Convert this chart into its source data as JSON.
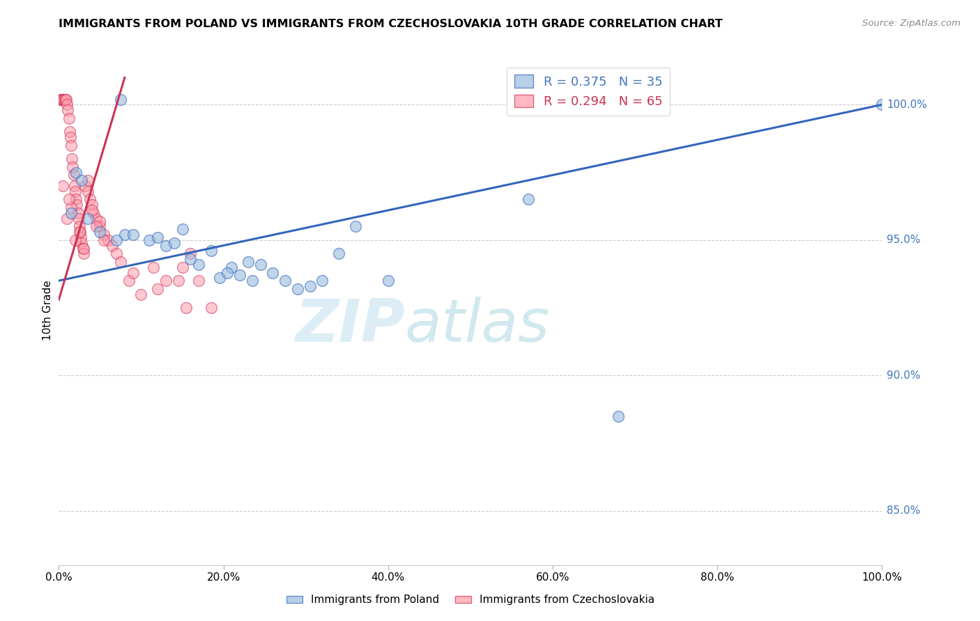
{
  "title": "IMMIGRANTS FROM POLAND VS IMMIGRANTS FROM CZECHOSLOVAKIA 10TH GRADE CORRELATION CHART",
  "source": "Source: ZipAtlas.com",
  "ylabel": "10th Grade",
  "legend_label1": "R = 0.375   N = 35",
  "legend_label2": "R = 0.294   N = 65",
  "color_blue": "#99BBDD",
  "color_pink": "#FF99AA",
  "color_blue_line": "#3366BB",
  "color_pink_line": "#CC3355",
  "color_blue_text": "#4477BB",
  "xmin": 0.0,
  "xmax": 100.0,
  "ymin": 83.0,
  "ymax": 101.8,
  "yticks": [
    85.0,
    90.0,
    95.0,
    100.0
  ],
  "xtick_vals": [
    0.0,
    20.0,
    40.0,
    60.0,
    80.0,
    100.0
  ],
  "blue_trend_x": [
    0.0,
    100.0
  ],
  "blue_trend_y": [
    93.5,
    100.0
  ],
  "pink_trend_x": [
    0.0,
    8.0
  ],
  "pink_trend_y": [
    92.8,
    101.0
  ],
  "blue_scatter_x": [
    2.1,
    2.8,
    7.5,
    1.5,
    3.5,
    5.0,
    8.0,
    11.0,
    13.0,
    15.0,
    17.0,
    18.5,
    19.5,
    21.0,
    22.0,
    23.5,
    24.5,
    26.0,
    27.5,
    29.0,
    30.5,
    32.0,
    34.0,
    36.0,
    7.0,
    9.0,
    12.0,
    14.0,
    16.0,
    20.5,
    23.0,
    40.0,
    57.0,
    100.0,
    68.0
  ],
  "blue_scatter_y": [
    97.5,
    97.2,
    100.2,
    96.0,
    95.8,
    95.3,
    95.2,
    95.0,
    94.8,
    95.4,
    94.1,
    94.6,
    93.6,
    94.0,
    93.7,
    93.5,
    94.1,
    93.8,
    93.5,
    93.2,
    93.3,
    93.5,
    94.5,
    95.5,
    95.0,
    95.2,
    95.1,
    94.9,
    94.3,
    93.8,
    94.2,
    93.5,
    96.5,
    100.0,
    88.5
  ],
  "pink_scatter_x": [
    0.2,
    0.3,
    0.4,
    0.5,
    0.6,
    0.7,
    0.8,
    0.9,
    1.0,
    1.1,
    1.2,
    1.3,
    1.4,
    1.5,
    1.6,
    1.7,
    1.8,
    1.9,
    2.0,
    2.1,
    2.2,
    2.3,
    2.4,
    2.5,
    2.6,
    2.7,
    2.8,
    2.9,
    3.0,
    3.2,
    3.5,
    3.8,
    4.0,
    4.2,
    4.5,
    5.0,
    5.5,
    6.0,
    6.5,
    7.0,
    1.0,
    1.5,
    2.0,
    3.0,
    4.0,
    5.0,
    8.5,
    10.0,
    11.5,
    13.0,
    14.5,
    15.5,
    16.0,
    17.0,
    18.5,
    2.5,
    3.5,
    0.5,
    1.2,
    4.5,
    5.5,
    7.5,
    9.0,
    12.0,
    15.0
  ],
  "pink_scatter_y": [
    100.2,
    100.2,
    100.2,
    100.2,
    100.2,
    100.2,
    100.2,
    100.2,
    100.0,
    99.8,
    99.5,
    99.0,
    98.8,
    98.5,
    98.0,
    97.7,
    97.4,
    97.0,
    96.8,
    96.5,
    96.3,
    96.0,
    95.8,
    95.5,
    95.3,
    95.1,
    94.9,
    94.7,
    94.5,
    97.0,
    96.8,
    96.5,
    96.3,
    96.0,
    95.8,
    95.5,
    95.2,
    95.0,
    94.8,
    94.5,
    95.8,
    96.2,
    95.0,
    94.7,
    96.1,
    95.7,
    93.5,
    93.0,
    94.0,
    93.5,
    93.5,
    92.5,
    94.5,
    93.5,
    92.5,
    95.3,
    97.2,
    97.0,
    96.5,
    95.5,
    95.0,
    94.2,
    93.8,
    93.2,
    94.0
  ],
  "watermark_zip": "ZIP",
  "watermark_atlas": "atlas",
  "bottom_label1": "Immigrants from Poland",
  "bottom_label2": "Immigrants from Czechoslovakia"
}
